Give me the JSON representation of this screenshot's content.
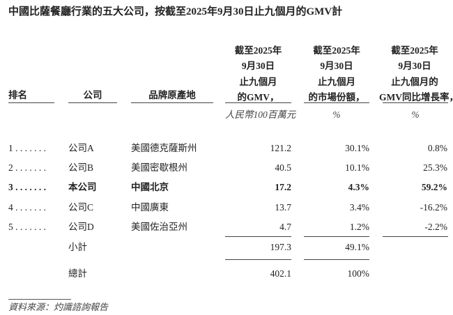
{
  "title": "中國比薩餐廳行業的五大公司，按截至2025年9月30日止九個月的GMV計",
  "headers": {
    "rank": "排名",
    "company": "公司",
    "origin": "品牌原產地",
    "gmv": [
      "截至2025年",
      "9月30日",
      "止九個月",
      "的GMV，"
    ],
    "share": [
      "截至2025年",
      "9月30日",
      "止九個月",
      "的市場份額，"
    ],
    "growth": [
      "截至2025年",
      "9月30日",
      "止九個月的",
      "GMV同比增長率，"
    ],
    "gmv_unit": "人民幣100百萬元",
    "share_unit": "%",
    "growth_unit": "%"
  },
  "rows": [
    {
      "rank": "1 . . . . . . .",
      "company": "公司A",
      "origin": "美國德克薩斯州",
      "gmv": "121.2",
      "share": "30.1%",
      "growth": "0.8%",
      "bold": false
    },
    {
      "rank": "2 . . . . . . .",
      "company": "公司B",
      "origin": "美國密歇根州",
      "gmv": "40.5",
      "share": "10.1%",
      "growth": "25.3%",
      "bold": false
    },
    {
      "rank": "3 . . . . . . .",
      "company": "本公司",
      "origin": "中國北京",
      "gmv": "17.2",
      "share": "4.3%",
      "growth": "59.2%",
      "bold": true
    },
    {
      "rank": "4 . . . . . . .",
      "company": "公司C",
      "origin": "中國廣東",
      "gmv": "13.7",
      "share": "3.4%",
      "growth": "-16.2%",
      "bold": false
    },
    {
      "rank": "5 . . . . . . .",
      "company": "公司D",
      "origin": "美國佐治亞州",
      "gmv": "4.7",
      "share": "1.2%",
      "growth": "-2.2%",
      "bold": false
    }
  ],
  "subtotal": {
    "label": "小計",
    "gmv": "197.3",
    "share": "49.1%"
  },
  "total": {
    "label": "總計",
    "gmv": "402.1",
    "share": "100%"
  },
  "source": "資料來源：灼識諮詢報告"
}
